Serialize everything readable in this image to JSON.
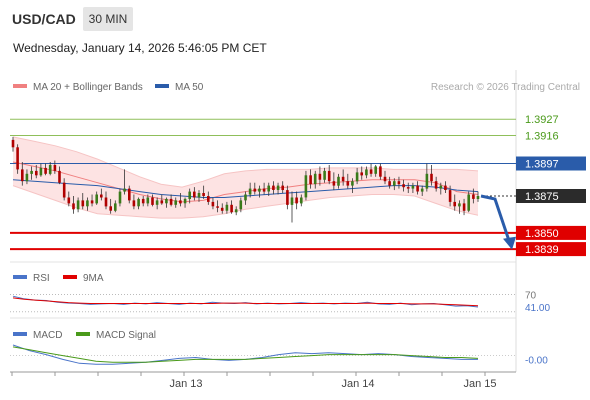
{
  "header": {
    "symbol": "USD/CAD",
    "timeframe": "30 MIN",
    "datetime": "Wednesday, January 14, 2026 5:46:05 PM CET"
  },
  "legend": {
    "bollinger_label": "MA 20 + Bollinger Bands",
    "ma50_label": "MA 50",
    "copyright": "Research © 2026 Trading Central",
    "bollinger_color": "#f08080",
    "ma50_color": "#2a5caa"
  },
  "rsi_panel": {
    "rsi_label": "RSI",
    "ma_label": "9MA",
    "rsi_color": "#4a74c9",
    "ma_color": "#e00000"
  },
  "macd_panel": {
    "macd_label": "MACD",
    "signal_label": "MACD Signal",
    "macd_color": "#4a74c9",
    "signal_color": "#4a9a1a"
  },
  "chart_data": [
    {
      "type": "candlestick",
      "title": "USD/CAD",
      "timeframe": "30 MIN",
      "x_tick_labels": [
        "Jan 13",
        "Jan 14",
        "Jan 15"
      ],
      "ylim": [
        1.3833,
        1.394
      ],
      "levels": [
        {
          "value": 1.3927,
          "label": "1.3927",
          "style": "green-line"
        },
        {
          "value": 1.3916,
          "label": "1.3916",
          "style": "green-line"
        },
        {
          "value": 1.3897,
          "label": "1.3897",
          "style": "blue-tag"
        },
        {
          "value": 1.3875,
          "label": "1.3875",
          "style": "current-price-tag"
        },
        {
          "value": 1.385,
          "label": "1.3850",
          "style": "red-tag"
        },
        {
          "value": 1.3839,
          "label": "1.3839",
          "style": "red-tag"
        }
      ],
      "projection": {
        "from": 1.3875,
        "to": 1.3842,
        "direction": "down",
        "color": "#2a5caa"
      },
      "candles": [
        [
          1.3913,
          1.3915,
          1.3905,
          1.3908
        ],
        [
          1.3908,
          1.391,
          1.389,
          1.3893
        ],
        [
          1.3893,
          1.3898,
          1.3882,
          1.3885
        ],
        [
          1.3885,
          1.3893,
          1.3883,
          1.389
        ],
        [
          1.389,
          1.3895,
          1.3886,
          1.3892
        ],
        [
          1.3892,
          1.3896,
          1.3887,
          1.3889
        ],
        [
          1.3889,
          1.3897,
          1.3888,
          1.3894
        ],
        [
          1.3894,
          1.3897,
          1.3889,
          1.389
        ],
        [
          1.389,
          1.3898,
          1.3889,
          1.3896
        ],
        [
          1.3896,
          1.3899,
          1.389,
          1.3892
        ],
        [
          1.3892,
          1.3895,
          1.3883,
          1.3884
        ],
        [
          1.3884,
          1.3887,
          1.3872,
          1.3874
        ],
        [
          1.3874,
          1.3878,
          1.3868,
          1.387
        ],
        [
          1.387,
          1.3875,
          1.3863,
          1.3866
        ],
        [
          1.3866,
          1.3874,
          1.3864,
          1.3872
        ],
        [
          1.3872,
          1.3877,
          1.3866,
          1.3868
        ],
        [
          1.3868,
          1.3874,
          1.3865,
          1.3872
        ],
        [
          1.3872,
          1.3876,
          1.3868,
          1.387
        ],
        [
          1.387,
          1.3878,
          1.3869,
          1.3876
        ],
        [
          1.3876,
          1.388,
          1.3872,
          1.3874
        ],
        [
          1.3874,
          1.3878,
          1.3866,
          1.3868
        ],
        [
          1.3868,
          1.3873,
          1.3863,
          1.3865
        ],
        [
          1.3865,
          1.3872,
          1.3864,
          1.387
        ],
        [
          1.387,
          1.388,
          1.3868,
          1.3878
        ],
        [
          1.3878,
          1.3893,
          1.3876,
          1.388
        ],
        [
          1.388,
          1.3882,
          1.387,
          1.3872
        ],
        [
          1.3872,
          1.3876,
          1.3866,
          1.3868
        ],
        [
          1.3868,
          1.3874,
          1.3866,
          1.3873
        ],
        [
          1.3873,
          1.3875,
          1.3868,
          1.387
        ],
        [
          1.387,
          1.3876,
          1.3868,
          1.3874
        ],
        [
          1.3874,
          1.3876,
          1.3868,
          1.3869
        ],
        [
          1.3869,
          1.3874,
          1.3866,
          1.3872
        ],
        [
          1.3872,
          1.3876,
          1.3869,
          1.387
        ],
        [
          1.387,
          1.3874,
          1.3867,
          1.3873
        ],
        [
          1.3873,
          1.3876,
          1.3868,
          1.3869
        ],
        [
          1.3869,
          1.3874,
          1.3867,
          1.3872
        ],
        [
          1.3872,
          1.3877,
          1.3868,
          1.387
        ],
        [
          1.387,
          1.3874,
          1.3867,
          1.3873
        ],
        [
          1.3873,
          1.388,
          1.387,
          1.3878
        ],
        [
          1.3878,
          1.3881,
          1.3872,
          1.3874
        ],
        [
          1.3874,
          1.3879,
          1.3871,
          1.3877
        ],
        [
          1.3877,
          1.3882,
          1.3873,
          1.3875
        ],
        [
          1.3875,
          1.3878,
          1.3869,
          1.3871
        ],
        [
          1.3871,
          1.3874,
          1.3866,
          1.3868
        ],
        [
          1.3868,
          1.3872,
          1.3864,
          1.3867
        ],
        [
          1.3867,
          1.387,
          1.3863,
          1.3865
        ],
        [
          1.3865,
          1.3871,
          1.3863,
          1.3869
        ],
        [
          1.3869,
          1.3872,
          1.3863,
          1.3864
        ],
        [
          1.3864,
          1.3868,
          1.3862,
          1.3866
        ],
        [
          1.3866,
          1.3874,
          1.3864,
          1.3872
        ],
        [
          1.3872,
          1.3878,
          1.3869,
          1.3876
        ],
        [
          1.3876,
          1.3884,
          1.3874,
          1.388
        ],
        [
          1.388,
          1.3884,
          1.3876,
          1.3878
        ],
        [
          1.3878,
          1.3882,
          1.3874,
          1.388
        ],
        [
          1.388,
          1.3884,
          1.3876,
          1.3878
        ],
        [
          1.3878,
          1.3884,
          1.3875,
          1.3882
        ],
        [
          1.3882,
          1.3885,
          1.3876,
          1.3879
        ],
        [
          1.3879,
          1.3884,
          1.3876,
          1.3882
        ],
        [
          1.3882,
          1.3885,
          1.3877,
          1.3879
        ],
        [
          1.3879,
          1.3882,
          1.3866,
          1.3869
        ],
        [
          1.3869,
          1.3878,
          1.3857,
          1.3874
        ],
        [
          1.3874,
          1.3878,
          1.3866,
          1.387
        ],
        [
          1.387,
          1.3876,
          1.3868,
          1.3874
        ],
        [
          1.3874,
          1.3892,
          1.3872,
          1.3889
        ],
        [
          1.3889,
          1.3893,
          1.388,
          1.3883
        ],
        [
          1.3883,
          1.3892,
          1.388,
          1.389
        ],
        [
          1.389,
          1.3895,
          1.3882,
          1.3886
        ],
        [
          1.3886,
          1.3894,
          1.3884,
          1.3892
        ],
        [
          1.3892,
          1.3896,
          1.3883,
          1.3885
        ],
        [
          1.3885,
          1.3891,
          1.3879,
          1.3882
        ],
        [
          1.3882,
          1.389,
          1.388,
          1.3888
        ],
        [
          1.3888,
          1.3893,
          1.3882,
          1.3885
        ],
        [
          1.3885,
          1.389,
          1.388,
          1.3882
        ],
        [
          1.3882,
          1.3887,
          1.3877,
          1.3885
        ],
        [
          1.3885,
          1.3894,
          1.3883,
          1.3891
        ],
        [
          1.3891,
          1.3895,
          1.3886,
          1.3889
        ],
        [
          1.3889,
          1.3895,
          1.3887,
          1.3893
        ],
        [
          1.3893,
          1.3897,
          1.3888,
          1.389
        ],
        [
          1.389,
          1.3896,
          1.3888,
          1.3895
        ],
        [
          1.3895,
          1.3897,
          1.3886,
          1.3888
        ],
        [
          1.3888,
          1.3892,
          1.3883,
          1.3885
        ],
        [
          1.3885,
          1.3888,
          1.388,
          1.3882
        ],
        [
          1.3882,
          1.3887,
          1.3879,
          1.3885
        ],
        [
          1.3885,
          1.3888,
          1.388,
          1.3883
        ],
        [
          1.3883,
          1.3886,
          1.3878,
          1.3881
        ],
        [
          1.3881,
          1.3884,
          1.3877,
          1.388
        ],
        [
          1.388,
          1.3884,
          1.3877,
          1.3882
        ],
        [
          1.3882,
          1.3885,
          1.3876,
          1.3878
        ],
        [
          1.3878,
          1.3882,
          1.3875,
          1.388
        ],
        [
          1.388,
          1.3897,
          1.3878,
          1.389
        ],
        [
          1.389,
          1.3896,
          1.3882,
          1.3885
        ],
        [
          1.3885,
          1.3888,
          1.3878,
          1.388
        ],
        [
          1.388,
          1.3884,
          1.3876,
          1.3882
        ],
        [
          1.3882,
          1.3885,
          1.3877,
          1.3879
        ],
        [
          1.3879,
          1.3882,
          1.3868,
          1.3871
        ],
        [
          1.3871,
          1.3876,
          1.3865,
          1.3868
        ],
        [
          1.3868,
          1.3872,
          1.3863,
          1.387
        ],
        [
          1.387,
          1.3873,
          1.3862,
          1.3865
        ],
        [
          1.3865,
          1.3878,
          1.3864,
          1.3876
        ],
        [
          1.3876,
          1.388,
          1.387,
          1.3873
        ],
        [
          1.3873,
          1.3878,
          1.3871,
          1.3875
        ]
      ],
      "series": [
        {
          "name": "MA 20 + Bollinger Bands",
          "type": "bollinger",
          "mid": [
            1.3898,
            1.3895,
            1.3892,
            1.3888,
            1.3884,
            1.388,
            1.3876,
            1.3873,
            1.3871,
            1.3872,
            1.3876,
            1.3878,
            1.388,
            1.3881,
            1.3883,
            1.3884,
            1.3885,
            1.3886,
            1.3886,
            1.3886,
            1.3884,
            1.3878,
            1.3876
          ],
          "upper": [
            1.3915,
            1.3912,
            1.3909,
            1.3905,
            1.39,
            1.3894,
            1.3888,
            1.3883,
            1.3881,
            1.3885,
            1.389,
            1.3892,
            1.3893,
            1.3893,
            1.3893,
            1.3894,
            1.3894,
            1.3894,
            1.3893,
            1.3893,
            1.3893,
            1.3893,
            1.3892
          ],
          "lower": [
            1.3882,
            1.3877,
            1.3872,
            1.3867,
            1.3863,
            1.3862,
            1.3861,
            1.386,
            1.386,
            1.3861,
            1.3863,
            1.3866,
            1.3868,
            1.387,
            1.3872,
            1.3874,
            1.3875,
            1.3876,
            1.3876,
            1.3875,
            1.387,
            1.3865,
            1.3862
          ]
        },
        {
          "name": "MA 50",
          "type": "line",
          "values": [
            1.3886,
            1.3885,
            1.3884,
            1.3883,
            1.3882,
            1.388,
            1.3878,
            1.3876,
            1.3875,
            1.3874,
            1.3874,
            1.3875,
            1.3876,
            1.3877,
            1.3878,
            1.3879,
            1.388,
            1.3881,
            1.3882,
            1.3882,
            1.3881,
            1.3879,
            1.3878
          ]
        }
      ]
    },
    {
      "type": "line",
      "title": "RSI",
      "ylim": [
        20,
        85
      ],
      "y_tick_labels": [
        "70",
        "41.00"
      ],
      "series": [
        {
          "name": "RSI",
          "values": [
            66,
            60,
            57,
            56,
            52,
            50,
            49,
            47,
            48,
            49,
            47,
            50,
            48,
            51,
            49,
            47,
            50,
            48,
            52,
            50,
            49,
            51,
            48,
            50,
            48,
            49,
            51,
            49,
            50,
            48,
            50,
            49,
            52,
            48,
            47,
            50,
            46,
            48,
            49,
            46,
            43,
            44,
            41
          ]
        },
        {
          "name": "9MA",
          "values": [
            62,
            59,
            57,
            55,
            53,
            51,
            50,
            49,
            49,
            49,
            49,
            49,
            49,
            49,
            49,
            49,
            49,
            49,
            49,
            50,
            50,
            50,
            49,
            49,
            49,
            49,
            49,
            49,
            49,
            49,
            49,
            49,
            50,
            49,
            49,
            49,
            48,
            48,
            48,
            47,
            46,
            45,
            44
          ]
        }
      ]
    },
    {
      "type": "line",
      "title": "MACD",
      "ylim": [
        -0.0015,
        0.0012
      ],
      "y_tick_labels": [
        "-0.00"
      ],
      "series": [
        {
          "name": "MACD",
          "values": [
            0.0011,
            0.0005,
            0.0001,
            -0.0004,
            -0.0008,
            -0.0009,
            -0.0009,
            -0.0008,
            -0.0007,
            -0.0005,
            -0.0003,
            -0.0002,
            -0.0004,
            -0.0005,
            -0.0004,
            -0.0002,
            0.0001,
            0.0003,
            0.0002,
            0.0003,
            0.0002,
            0.0001,
            0.0002,
            0.0001,
            -0.0001,
            -0.0002,
            -0.0003,
            -0.0004,
            -0.0004
          ]
        },
        {
          "name": "MACD Signal",
          "values": [
            0.0009,
            0.0006,
            0.0003,
            0.0,
            -0.0003,
            -0.0006,
            -0.0007,
            -0.0007,
            -0.0007,
            -0.0006,
            -0.0005,
            -0.0004,
            -0.0004,
            -0.0004,
            -0.0004,
            -0.0003,
            -0.0002,
            -0.0001,
            0.0,
            0.0001,
            0.0001,
            0.0001,
            0.0001,
            0.0001,
            0.0,
            -0.0001,
            -0.0002,
            -0.0002,
            -0.0003
          ]
        }
      ]
    }
  ]
}
